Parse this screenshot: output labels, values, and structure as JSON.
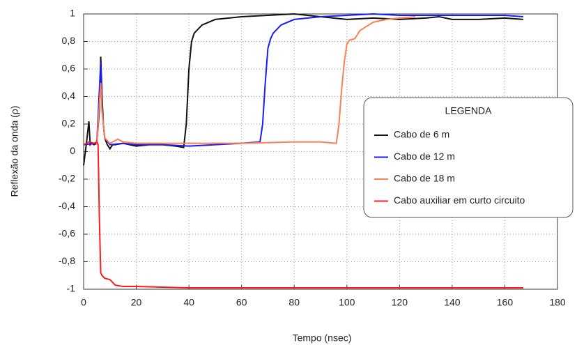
{
  "chart_data": {
    "type": "line",
    "x_label": "Tempo (nsec)",
    "y_label": "Reflexão da onda (ρ)",
    "legend_title": "LEGENDA",
    "legend": "right",
    "grid": true,
    "xlim": [
      0,
      180
    ],
    "ylim": [
      -1,
      1
    ],
    "xticks": [
      0,
      20,
      40,
      60,
      80,
      100,
      120,
      140,
      160,
      180
    ],
    "yticks": [
      -1,
      {
        "value": -0.8,
        "label": "-0,8"
      },
      {
        "value": -0.6,
        "label": "-0,6"
      },
      {
        "value": -0.4,
        "label": "-0,4"
      },
      {
        "value": -0.2,
        "label": "-0,2"
      },
      0,
      {
        "value": 0.2,
        "label": "0,2"
      },
      {
        "value": 0.4,
        "label": "0,4"
      },
      {
        "value": 0.6,
        "label": "0,6"
      },
      {
        "value": 0.8,
        "label": "0,8"
      },
      1
    ],
    "series": [
      {
        "name": "Cabo de 6 m",
        "color": "#111111",
        "x": [
          0,
          1,
          2,
          2.5,
          3,
          4,
          5,
          6,
          6.5,
          7,
          7.5,
          8,
          9,
          10,
          11,
          12,
          15,
          20,
          25,
          30,
          35,
          38,
          39,
          40,
          41,
          42,
          43,
          45,
          50,
          60,
          70,
          80,
          85,
          90,
          100,
          110,
          120,
          130,
          135,
          140,
          150,
          160,
          167
        ],
        "values": [
          -0.1,
          0.05,
          0.22,
          0.05,
          0.06,
          0.05,
          0.06,
          0.3,
          0.69,
          0.4,
          0.2,
          0.1,
          0.05,
          0.02,
          0.05,
          0.05,
          0.06,
          0.04,
          0.05,
          0.05,
          0.04,
          0.03,
          0.2,
          0.6,
          0.8,
          0.86,
          0.88,
          0.92,
          0.96,
          0.98,
          0.99,
          1.0,
          0.99,
          0.98,
          0.96,
          0.97,
          0.96,
          0.97,
          0.98,
          0.96,
          0.96,
          0.97,
          0.96
        ]
      },
      {
        "name": "Cabo de 12 m",
        "color": "#1a1aff",
        "x": [
          0,
          5,
          6.5,
          7,
          8,
          10,
          15,
          20,
          30,
          40,
          50,
          60,
          67,
          68,
          69,
          70,
          71,
          72,
          75,
          80,
          90,
          100,
          110,
          120,
          140,
          160,
          167
        ],
        "values": [
          0.05,
          0.06,
          0.65,
          0.3,
          0.1,
          0.05,
          0.06,
          0.05,
          0.05,
          0.04,
          0.05,
          0.06,
          0.07,
          0.2,
          0.5,
          0.75,
          0.82,
          0.86,
          0.92,
          0.96,
          0.98,
          0.99,
          1.0,
          0.99,
          0.99,
          0.99,
          0.98
        ]
      },
      {
        "name": "Cabo de 18 m",
        "color": "#ff7f50",
        "x": [
          5,
          6.5,
          7,
          8,
          10,
          13,
          15,
          20,
          40,
          60,
          80,
          90,
          96,
          97,
          98,
          99,
          100,
          101,
          103,
          105,
          110,
          115,
          120,
          126
        ],
        "values": [
          0.05,
          0.5,
          0.3,
          0.1,
          0.06,
          0.09,
          0.07,
          0.06,
          0.06,
          0.06,
          0.07,
          0.07,
          0.06,
          0.2,
          0.45,
          0.65,
          0.78,
          0.81,
          0.82,
          0.88,
          0.94,
          0.96,
          0.97,
          0.98
        ]
      },
      {
        "name": "Cabo auxiliar em curto circuito",
        "color": "#ff1a1a",
        "x": [
          0,
          2,
          4,
          5,
          5.5,
          6,
          6.5,
          7,
          8,
          10,
          12,
          15,
          20,
          40,
          60,
          80,
          100,
          120,
          140,
          160,
          167
        ],
        "values": [
          0.05,
          0.07,
          0.06,
          0.07,
          0.05,
          -0.5,
          -0.88,
          -0.9,
          -0.92,
          -0.93,
          -0.97,
          -0.98,
          -0.98,
          -0.99,
          -0.99,
          -0.99,
          -0.99,
          -0.99,
          -0.99,
          -0.99,
          -0.99
        ]
      }
    ]
  }
}
